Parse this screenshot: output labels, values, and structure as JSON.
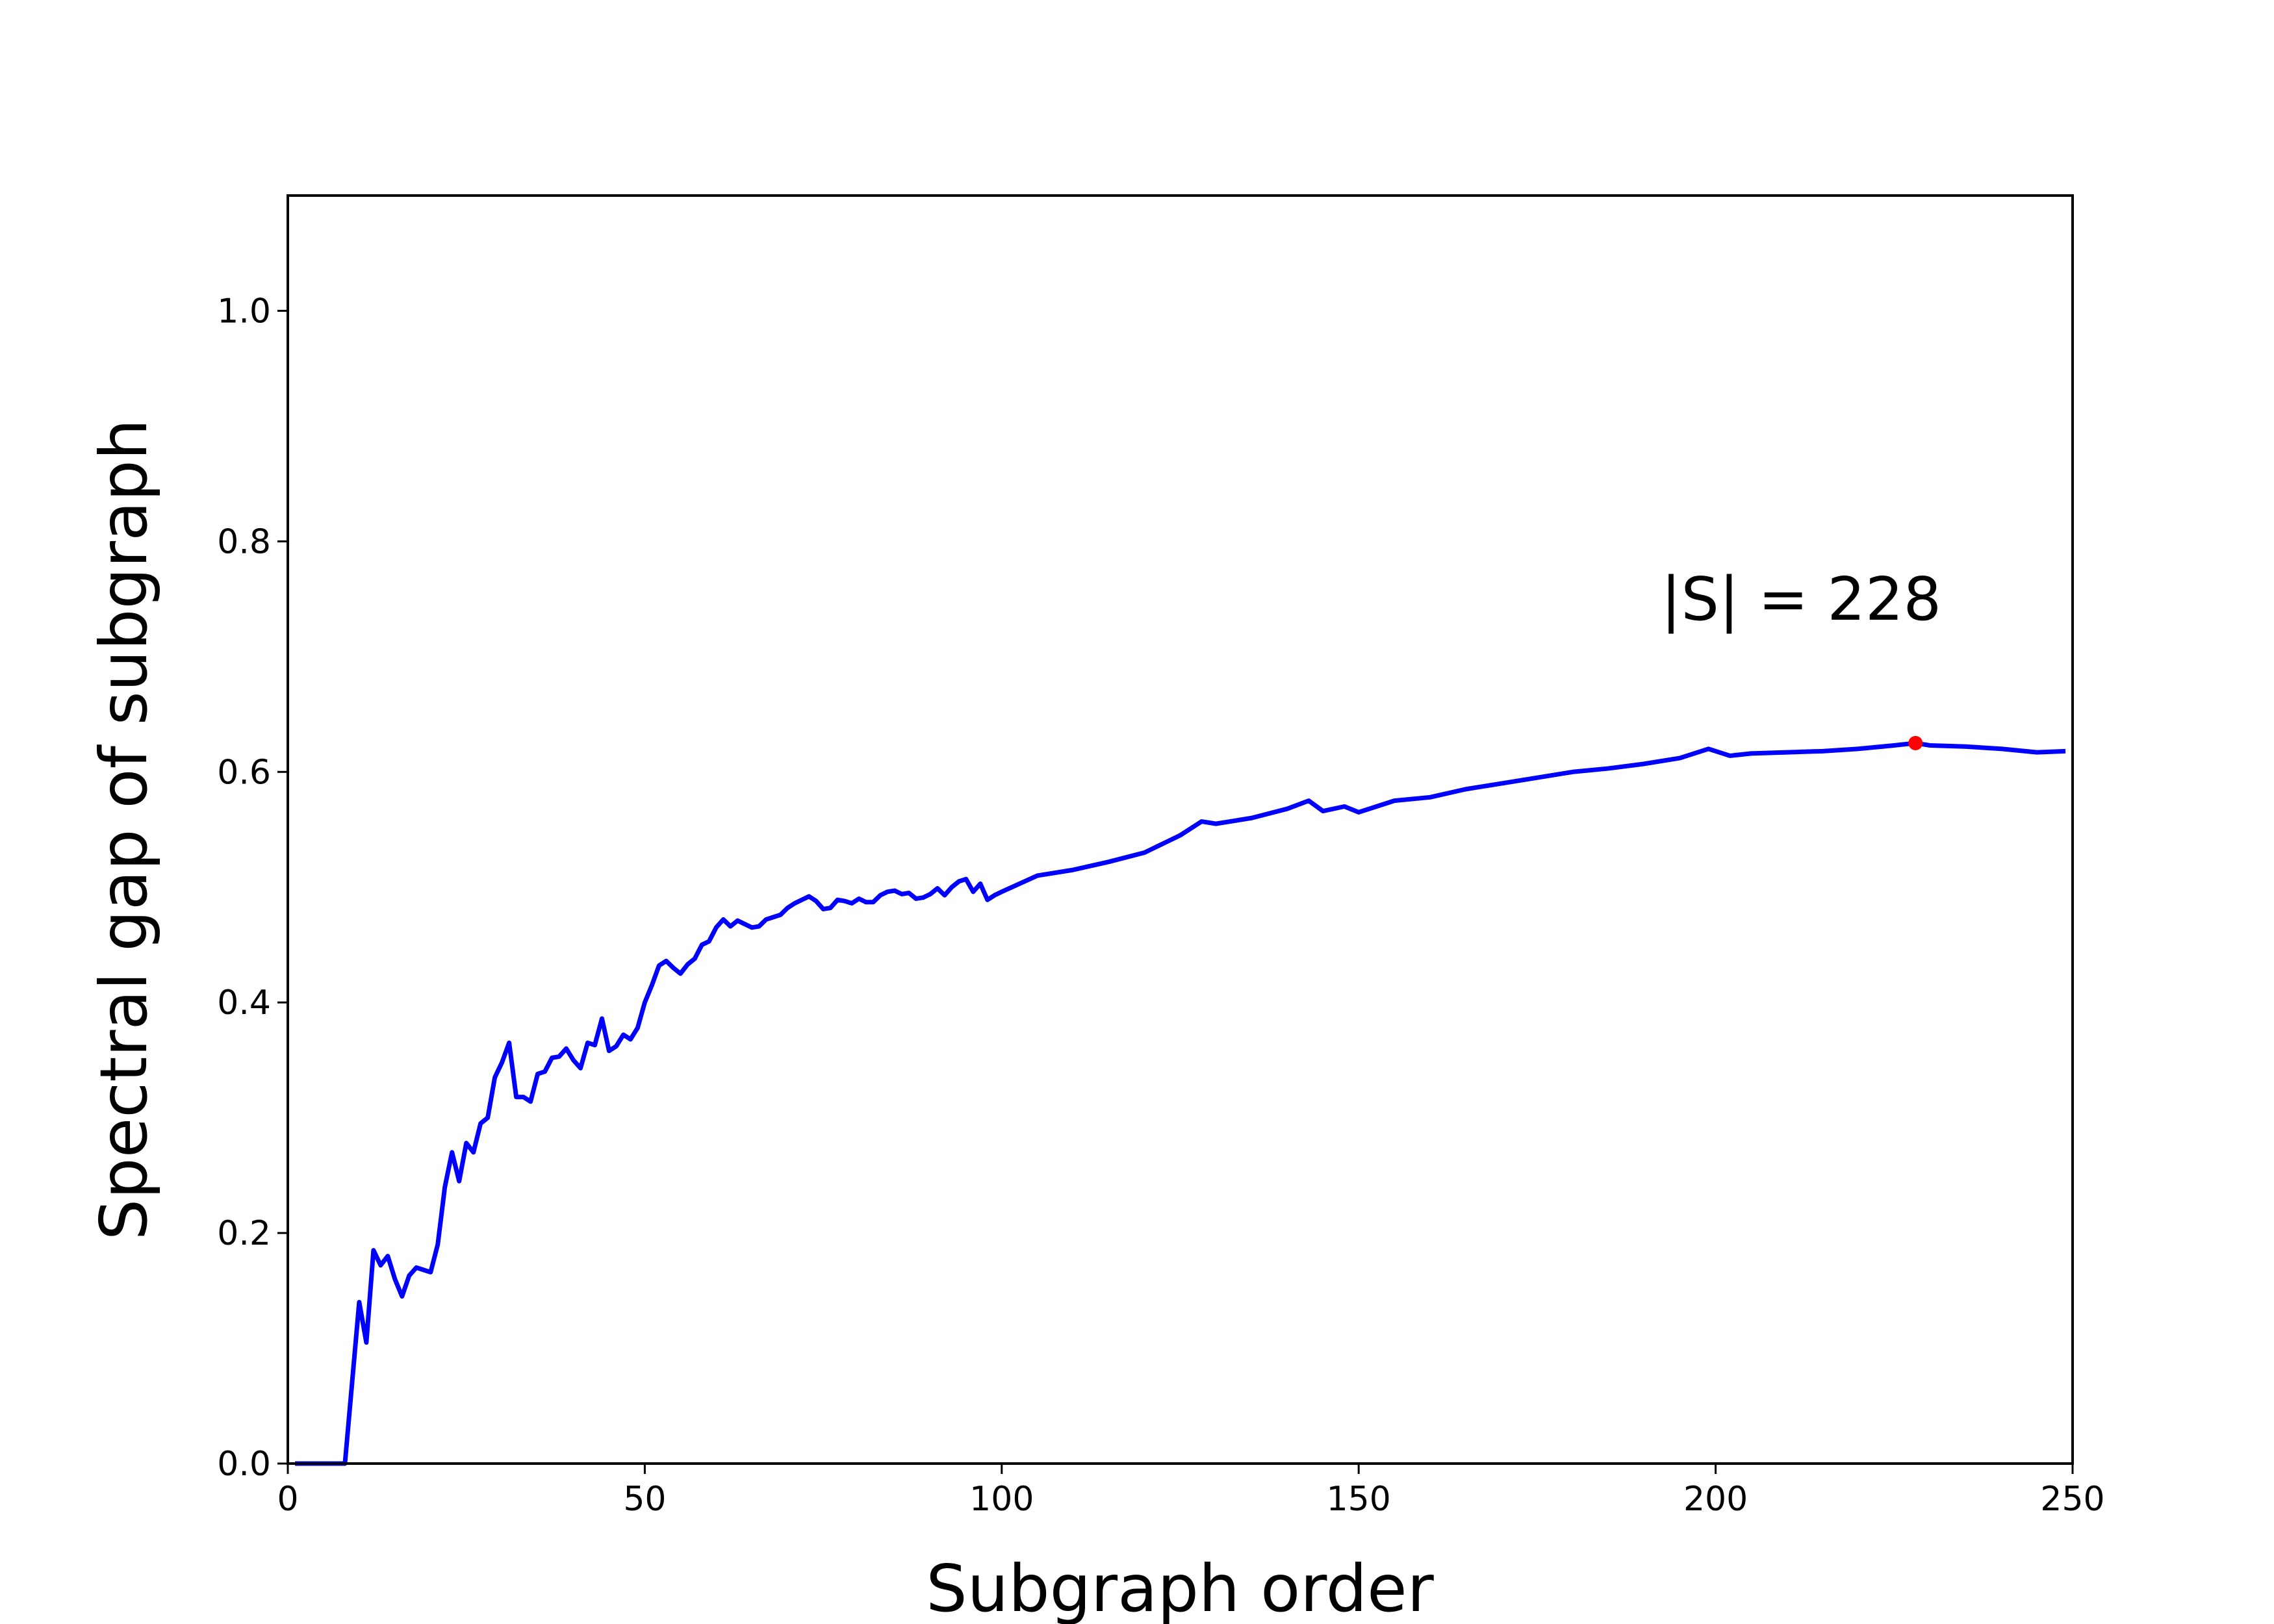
{
  "chart_data": {
    "type": "line",
    "xlabel": "Subgraph order",
    "ylabel": "Spectral gap of subgraph",
    "x": [
      1,
      2,
      3,
      4,
      5,
      6,
      7,
      8,
      9,
      10,
      11,
      12,
      13,
      14,
      15,
      16,
      17,
      18,
      19,
      20,
      21,
      22,
      23,
      24,
      25,
      26,
      27,
      28,
      29,
      30,
      31,
      32,
      33,
      34,
      35,
      36,
      37,
      38,
      39,
      40,
      41,
      42,
      43,
      44,
      45,
      46,
      47,
      48,
      49,
      50,
      51,
      52,
      53,
      54,
      55,
      56,
      57,
      58,
      59,
      60,
      61,
      62,
      63,
      64,
      65,
      66,
      67,
      68,
      69,
      70,
      71,
      72,
      73,
      74,
      75,
      76,
      77,
      78,
      79,
      80,
      81,
      82,
      83,
      84,
      85,
      86,
      87,
      88,
      89,
      90,
      91,
      92,
      93,
      94,
      95,
      96,
      97,
      98,
      99,
      100,
      105,
      110,
      115,
      120,
      125,
      128,
      130,
      135,
      140,
      143,
      145,
      148,
      150,
      155,
      160,
      165,
      170,
      175,
      180,
      185,
      190,
      195,
      199,
      202,
      205,
      210,
      215,
      220,
      225,
      228,
      230,
      235,
      240,
      245,
      249
    ],
    "series": [
      {
        "name": "spectral gap",
        "color": "#0000ff",
        "values": [
          0,
          0,
          0,
          0,
          0,
          0,
          0,
          0,
          0.07,
          0.14,
          0.105,
          0.185,
          0.172,
          0.18,
          0.16,
          0.145,
          0.163,
          0.17,
          0.168,
          0.166,
          0.19,
          0.24,
          0.27,
          0.245,
          0.278,
          0.27,
          0.295,
          0.3,
          0.335,
          0.348,
          0.365,
          0.318,
          0.318,
          0.314,
          0.338,
          0.34,
          0.352,
          0.353,
          0.36,
          0.35,
          0.343,
          0.365,
          0.363,
          0.386,
          0.358,
          0.362,
          0.372,
          0.368,
          0.378,
          0.4,
          0.415,
          0.432,
          0.436,
          0.43,
          0.425,
          0.433,
          0.438,
          0.45,
          0.453,
          0.465,
          0.472,
          0.466,
          0.471,
          0.468,
          0.465,
          0.466,
          0.472,
          0.474,
          0.476,
          0.482,
          0.486,
          0.489,
          0.492,
          0.488,
          0.481,
          0.482,
          0.489,
          0.488,
          0.486,
          0.49,
          0.487,
          0.487,
          0.493,
          0.496,
          0.497,
          0.494,
          0.495,
          0.49,
          0.491,
          0.494,
          0.499,
          0.493,
          0.5,
          0.505,
          0.507,
          0.496,
          0.503,
          0.489,
          0.493,
          0.496,
          0.51,
          0.515,
          0.522,
          0.53,
          0.545,
          0.557,
          0.555,
          0.56,
          0.568,
          0.575,
          0.566,
          0.57,
          0.565,
          0.575,
          0.578,
          0.585,
          0.59,
          0.595,
          0.6,
          0.603,
          0.607,
          0.612,
          0.62,
          0.614,
          0.616,
          0.617,
          0.618,
          0.62,
          0.623,
          0.625,
          0.623,
          0.622,
          0.62,
          0.617,
          0.618
        ]
      }
    ],
    "marker": {
      "x": 228,
      "y": 0.625,
      "color": "#ff0000"
    },
    "annotation": "|S| = 228",
    "xlim": [
      0,
      250
    ],
    "xticks": [
      0,
      50,
      100,
      150,
      200,
      250
    ],
    "ylim": [
      0,
      1.1
    ],
    "yticks": [
      {
        "value": 0,
        "label": "0.0"
      },
      0.2,
      0.4,
      0.6,
      0.8,
      {
        "value": 1,
        "label": "1.0"
      }
    ]
  }
}
